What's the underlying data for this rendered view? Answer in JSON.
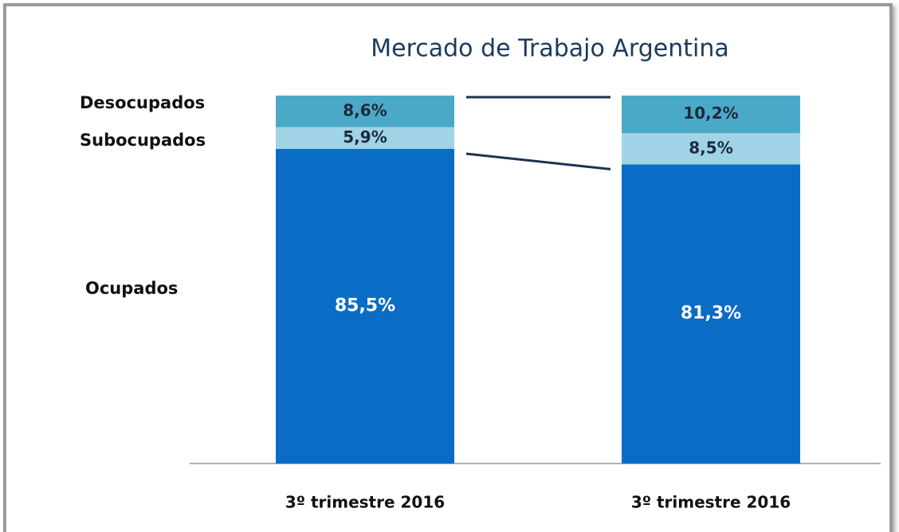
{
  "chart_data": {
    "type": "stacked_bar",
    "title": "Mercado de Trabajo Argentina",
    "categories": [
      "3º trimestre 2016",
      "3º trimestre 2016"
    ],
    "series": [
      {
        "name": "Ocupados",
        "color": "#0b6cc5",
        "values": [
          85.5,
          81.3
        ],
        "value_labels": [
          "85,5%",
          "81,3%"
        ]
      },
      {
        "name": "Subocupados",
        "color": "#9fd3e5",
        "values": [
          5.9,
          8.5
        ],
        "value_labels": [
          "5,9%",
          "8,5%"
        ]
      },
      {
        "name": "Desocupados",
        "color": "#4ba9c8",
        "values": [
          8.6,
          10.2
        ],
        "value_labels": [
          "8,6%",
          "10,2%"
        ]
      }
    ],
    "ylim": [
      0,
      100
    ]
  }
}
